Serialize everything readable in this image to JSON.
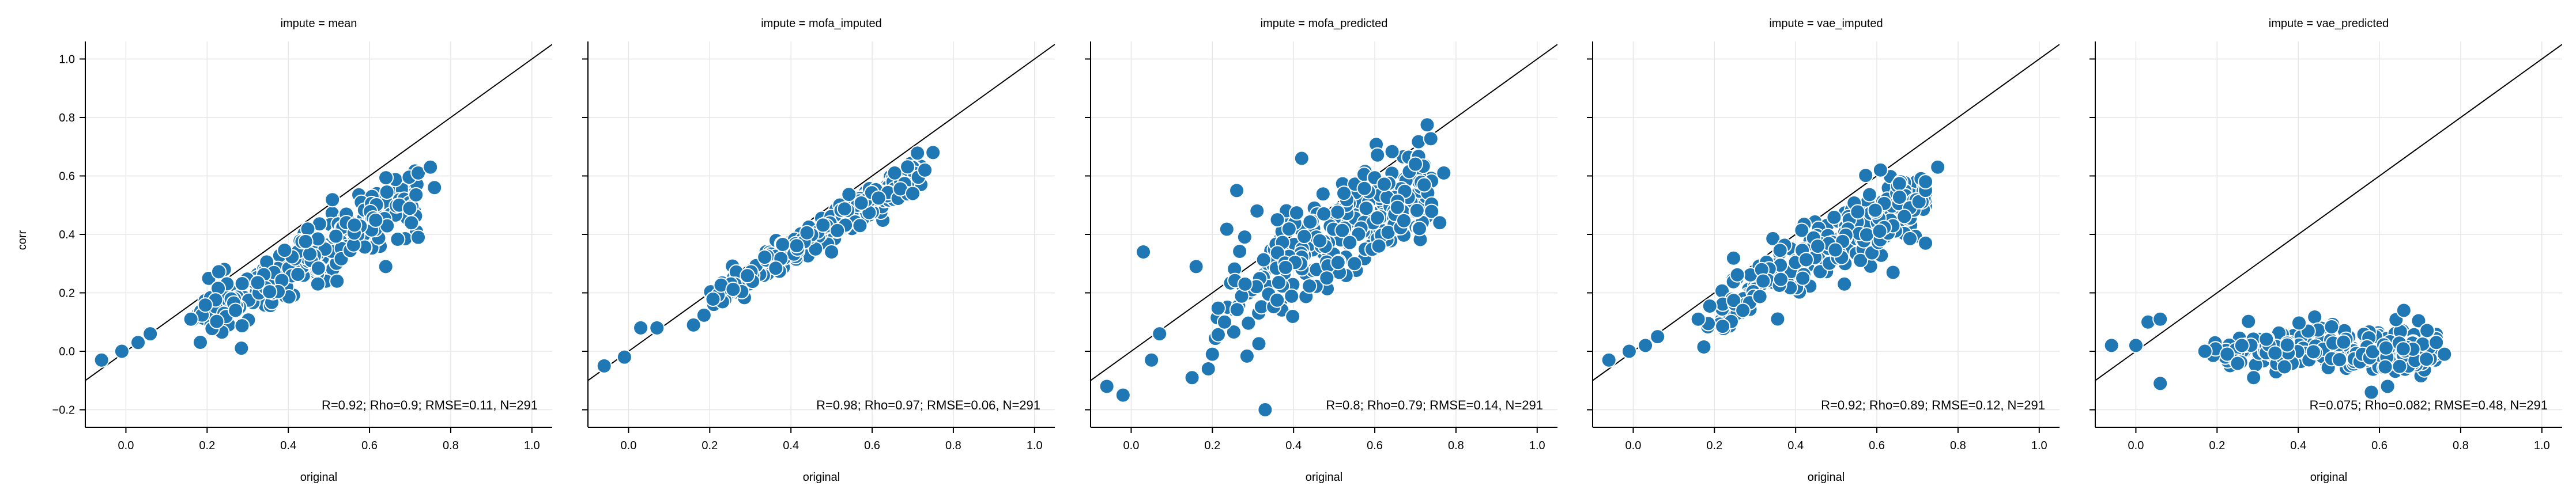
{
  "figure": {
    "shared_ylabel": "corr",
    "shared_xlabel": "original"
  },
  "chart_data": [
    {
      "type": "scatter",
      "title": "impute = mean",
      "xlabel": "original",
      "ylabel": "corr",
      "xlim": [
        -0.1,
        1.05
      ],
      "ylim": [
        -0.26,
        1.06
      ],
      "xticks": [
        0.0,
        0.2,
        0.4,
        0.6,
        0.8,
        1.0
      ],
      "xtick_labels": [
        "0.0",
        "0.2",
        "0.4",
        "0.6",
        "0.8",
        "1.0"
      ],
      "yticks": [
        -0.2,
        0.0,
        0.2,
        0.4,
        0.6,
        0.8,
        1.0
      ],
      "ytick_labels": [
        "−0.2",
        "0.0",
        "0.2",
        "0.4",
        "0.6",
        "0.8",
        "1.0"
      ],
      "grid": true,
      "reference_line": "y = x",
      "annotation": "R=0.92; Rho=0.9; RMSE=0.11, N=291",
      "n": 291,
      "outliers": [
        [
          -0.06,
          -0.03
        ],
        [
          -0.01,
          0.0
        ],
        [
          0.03,
          0.03
        ],
        [
          0.06,
          0.06
        ],
        [
          0.16,
          0.11
        ],
        [
          0.27,
          0.14
        ],
        [
          0.52,
          0.24
        ],
        [
          0.64,
          0.29
        ],
        [
          0.72,
          0.39
        ],
        [
          0.76,
          0.56
        ],
        [
          0.72,
          0.61
        ],
        [
          0.75,
          0.63
        ]
      ],
      "trend": {
        "slope": 0.76,
        "intercept": -0.02,
        "spread": 0.055,
        "x_range": [
          0.18,
          0.72
        ]
      }
    },
    {
      "type": "scatter",
      "title": "impute = mofa_imputed",
      "xlabel": "original",
      "ylabel": "",
      "xlim": [
        -0.1,
        1.05
      ],
      "ylim": [
        -0.26,
        1.06
      ],
      "xticks": [
        0.0,
        0.2,
        0.4,
        0.6,
        0.8,
        1.0
      ],
      "xtick_labels": [
        "0.0",
        "0.2",
        "0.4",
        "0.6",
        "0.8",
        "1.0"
      ],
      "yticks": [
        -0.2,
        0.0,
        0.2,
        0.4,
        0.6,
        0.8,
        1.0
      ],
      "ytick_labels": [
        "−0.2",
        "0.0",
        "0.2",
        "0.4",
        "0.6",
        "0.8",
        "1.0"
      ],
      "grid": true,
      "reference_line": "y = x",
      "annotation": "R=0.98; Rho=0.97; RMSE=0.06, N=291",
      "n": 291,
      "outliers": [
        [
          -0.06,
          -0.05
        ],
        [
          -0.01,
          -0.02
        ],
        [
          0.03,
          0.08
        ],
        [
          0.07,
          0.08
        ],
        [
          0.16,
          0.09
        ],
        [
          0.5,
          0.34
        ],
        [
          0.57,
          0.43
        ],
        [
          0.7,
          0.54
        ],
        [
          0.75,
          0.68
        ],
        [
          0.73,
          0.62
        ]
      ],
      "trend": {
        "slope": 0.86,
        "intercept": 0.0,
        "spread": 0.028,
        "x_range": [
          0.18,
          0.72
        ]
      }
    },
    {
      "type": "scatter",
      "title": "impute = mofa_predicted",
      "xlabel": "original",
      "ylabel": "",
      "xlim": [
        -0.1,
        1.05
      ],
      "ylim": [
        -0.26,
        1.06
      ],
      "xticks": [
        0.0,
        0.2,
        0.4,
        0.6,
        0.8,
        1.0
      ],
      "xtick_labels": [
        "0.0",
        "0.2",
        "0.4",
        "0.6",
        "0.8",
        "1.0"
      ],
      "yticks": [
        -0.2,
        0.0,
        0.2,
        0.4,
        0.6,
        0.8,
        1.0
      ],
      "ytick_labels": [
        "−0.2",
        "0.0",
        "0.2",
        "0.4",
        "0.6",
        "0.8",
        "1.0"
      ],
      "grid": true,
      "reference_line": "y = x",
      "annotation": "R=0.8; Rho=0.79; RMSE=0.14, N=291",
      "n": 291,
      "outliers": [
        [
          -0.06,
          -0.12
        ],
        [
          0.03,
          0.34
        ],
        [
          -0.02,
          -0.15
        ],
        [
          0.07,
          0.06
        ],
        [
          0.05,
          -0.03
        ],
        [
          0.15,
          -0.09
        ],
        [
          0.16,
          0.29
        ],
        [
          0.19,
          -0.06
        ],
        [
          0.2,
          -0.01
        ],
        [
          0.23,
          0.1
        ],
        [
          0.31,
          0.48
        ],
        [
          0.33,
          -0.2
        ],
        [
          0.36,
          0.45
        ],
        [
          0.42,
          0.66
        ],
        [
          0.7,
          0.64
        ],
        [
          0.77,
          0.61
        ],
        [
          0.71,
          0.42
        ],
        [
          0.76,
          0.44
        ],
        [
          0.61,
          0.36
        ],
        [
          0.55,
          0.3
        ],
        [
          0.26,
          0.55
        ]
      ],
      "trend": {
        "slope": 0.74,
        "intercept": 0.03,
        "spread": 0.09,
        "x_range": [
          0.2,
          0.74
        ]
      }
    },
    {
      "type": "scatter",
      "title": "impute = vae_imputed",
      "xlabel": "original",
      "ylabel": "",
      "xlim": [
        -0.1,
        1.05
      ],
      "ylim": [
        -0.26,
        1.06
      ],
      "xticks": [
        0.0,
        0.2,
        0.4,
        0.6,
        0.8,
        1.0
      ],
      "xtick_labels": [
        "0.0",
        "0.2",
        "0.4",
        "0.6",
        "0.8",
        "1.0"
      ],
      "yticks": [
        -0.2,
        0.0,
        0.2,
        0.4,
        0.6,
        0.8,
        1.0
      ],
      "ytick_labels": [
        "−0.2",
        "0.0",
        "0.2",
        "0.4",
        "0.6",
        "0.8",
        "1.0"
      ],
      "grid": true,
      "reference_line": "y = x",
      "annotation": "R=0.92; Rho=0.89; RMSE=0.12, N=291",
      "n": 291,
      "outliers": [
        [
          -0.06,
          -0.03
        ],
        [
          -0.01,
          0.0
        ],
        [
          0.03,
          0.02
        ],
        [
          0.06,
          0.05
        ],
        [
          0.16,
          0.11
        ],
        [
          0.27,
          0.14
        ],
        [
          0.52,
          0.23
        ],
        [
          0.64,
          0.27
        ],
        [
          0.72,
          0.37
        ],
        [
          0.75,
          0.63
        ],
        [
          0.72,
          0.58
        ]
      ],
      "trend": {
        "slope": 0.74,
        "intercept": -0.01,
        "spread": 0.055,
        "x_range": [
          0.18,
          0.72
        ]
      }
    },
    {
      "type": "scatter",
      "title": "impute = vae_predicted",
      "xlabel": "original",
      "ylabel": "",
      "xlim": [
        -0.1,
        1.05
      ],
      "ylim": [
        -0.26,
        1.06
      ],
      "xticks": [
        0.0,
        0.2,
        0.4,
        0.6,
        0.8,
        1.0
      ],
      "xtick_labels": [
        "0.0",
        "0.2",
        "0.4",
        "0.6",
        "0.8",
        "1.0"
      ],
      "yticks": [
        -0.2,
        0.0,
        0.2,
        0.4,
        0.6,
        0.8,
        1.0
      ],
      "ytick_labels": [
        "−0.2",
        "0.0",
        "0.2",
        "0.4",
        "0.6",
        "0.8",
        "1.0"
      ],
      "grid": true,
      "reference_line": "y = x",
      "annotation": "R=0.075; Rho=0.082; RMSE=0.48, N=291",
      "n": 291,
      "outliers": [
        [
          -0.06,
          0.02
        ],
        [
          0.0,
          0.02
        ],
        [
          0.03,
          0.1
        ],
        [
          0.06,
          0.11
        ],
        [
          0.06,
          -0.11
        ],
        [
          0.17,
          0.0
        ],
        [
          0.29,
          -0.09
        ],
        [
          0.58,
          -0.14
        ],
        [
          0.62,
          -0.12
        ],
        [
          0.76,
          -0.01
        ],
        [
          0.74,
          0.03
        ],
        [
          0.66,
          0.14
        ]
      ],
      "trend": {
        "slope": 0.0,
        "intercept": 0.005,
        "spread": 0.035,
        "x_range": [
          0.18,
          0.74
        ]
      }
    }
  ],
  "colors": {
    "marker_fill": "#1f77b4",
    "marker_edge": "#ffffff",
    "grid": "#e6e6e6",
    "axis": "#000000",
    "reference_line": "#000000"
  }
}
